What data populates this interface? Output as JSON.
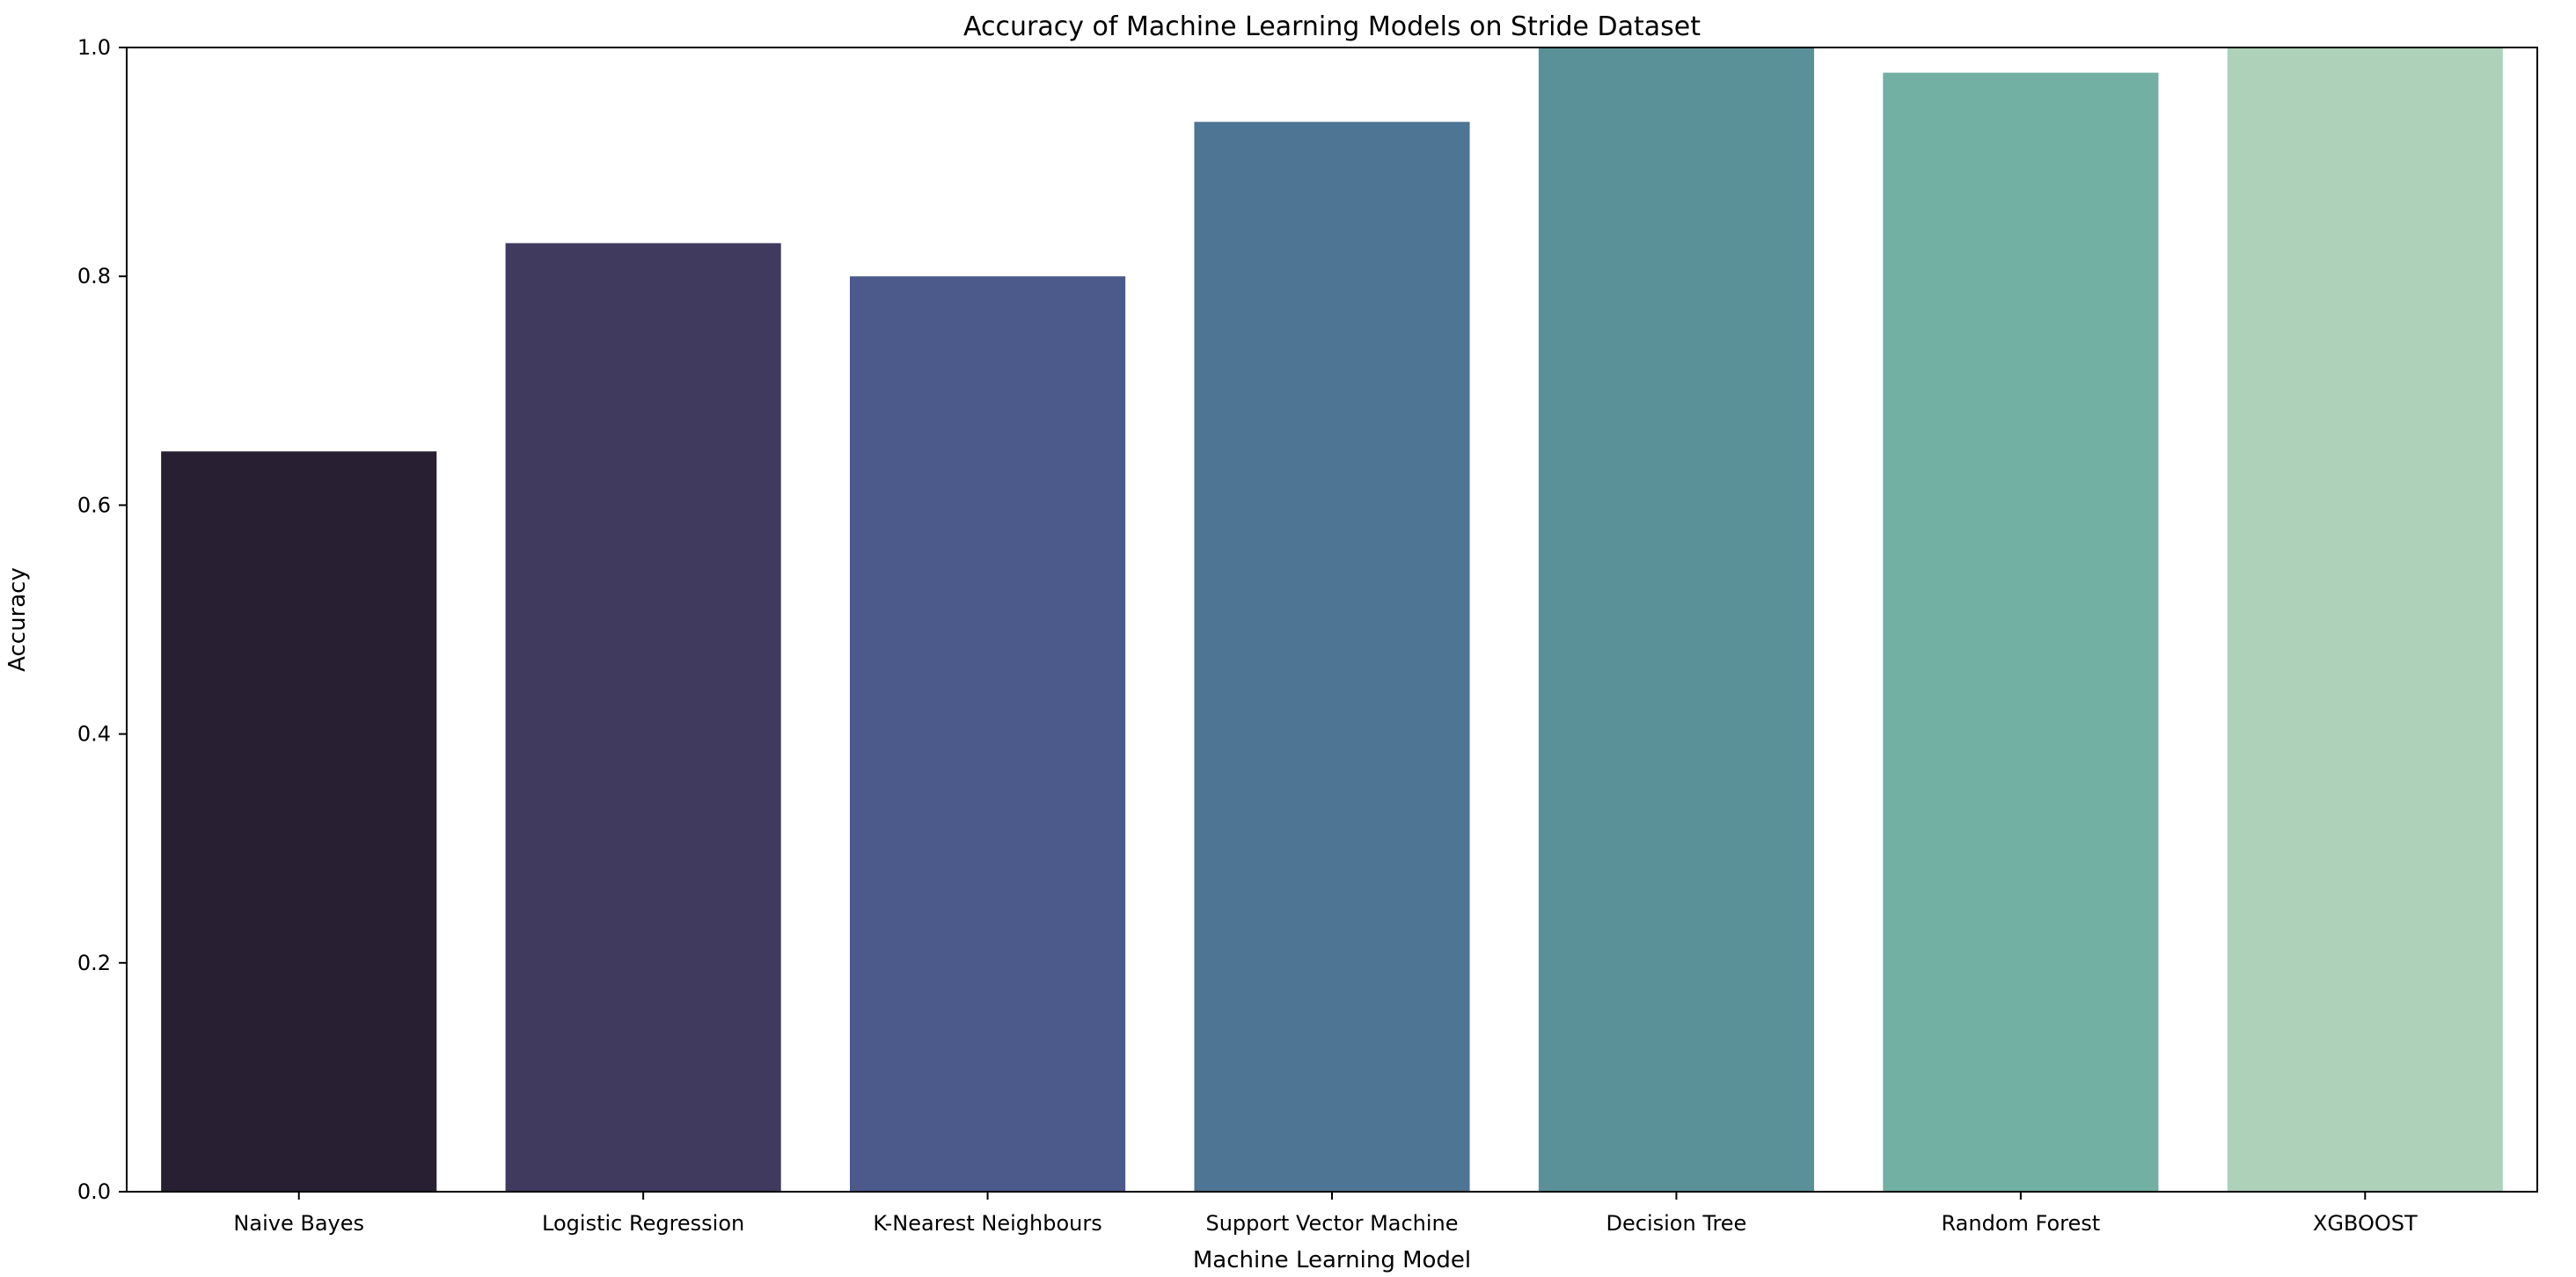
{
  "chart_data": {
    "type": "bar",
    "title": "Accuracy of Machine Learning Models on Stride Dataset",
    "xlabel": "Machine Learning Model",
    "ylabel": "Accuracy",
    "categories": [
      "Naive Bayes",
      "Logistic Regression",
      "K-Nearest Neighbours",
      "Support Vector Machine",
      "Decision Tree",
      "Random Forest",
      "XGBOOST"
    ],
    "values": [
      0.647,
      0.829,
      0.8,
      0.935,
      1.0,
      0.978,
      1.0
    ],
    "colors": [
      "#281f32",
      "#413a5f",
      "#4b5a8a",
      "#4e7593",
      "#5a9199",
      "#71b0a3",
      "#add2b9"
    ],
    "ylim": [
      0,
      1.0
    ],
    "yticks": [
      "0.0",
      "0.2",
      "0.4",
      "0.6",
      "0.8",
      "1.0"
    ],
    "grid": false,
    "legend": "none"
  }
}
